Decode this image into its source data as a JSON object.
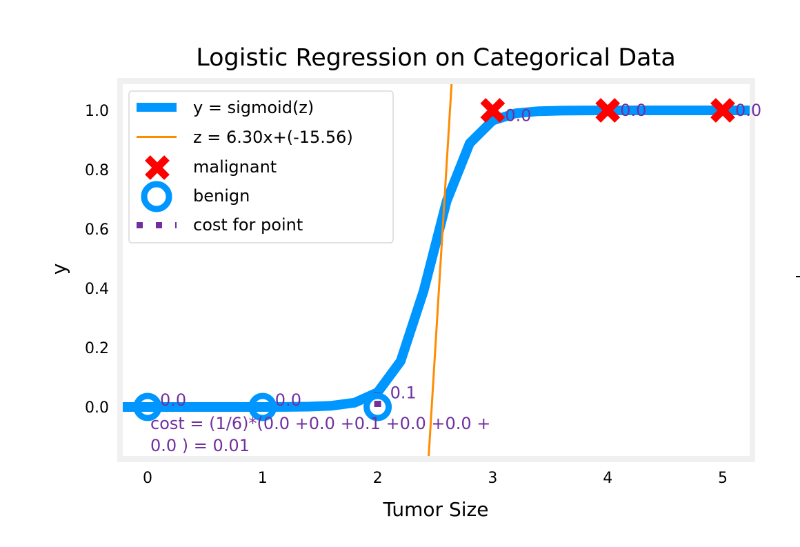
{
  "chart_data": {
    "type": "line",
    "title": "Logistic Regression on Categorical Data",
    "xlabel": "Tumor Size",
    "ylabel": "y",
    "xlim": [
      -0.26,
      5.28
    ],
    "ylim": [
      -0.175,
      1.1
    ],
    "grid": false,
    "legend_placement": "upper-left",
    "xticks": [
      "0",
      "1",
      "2",
      "3",
      "4",
      "5"
    ],
    "yticks": [
      "0.0",
      "0.2",
      "0.4",
      "0.6",
      "0.8",
      "1.0"
    ],
    "model": {
      "w": 6.3,
      "b": -15.56
    },
    "sigmoid_curve": {
      "name": "y = sigmoid(z)",
      "color": "#0096ff",
      "x": [
        -0.4,
        -0.2,
        0,
        0.2,
        0.4,
        0.6,
        0.8,
        1.0,
        1.2,
        1.4,
        1.6,
        1.8,
        2.0,
        2.2,
        2.4,
        2.6,
        2.8,
        3.0,
        3.2,
        3.4,
        3.6,
        3.8,
        4.0,
        4.2,
        4.4,
        4.6,
        4.8,
        5.0,
        5.2,
        5.4
      ],
      "y": [
        0,
        0,
        0,
        0,
        0,
        0,
        0,
        0.0001,
        0.0004,
        0.0012,
        0.0042,
        0.0145,
        0.0493,
        0.1545,
        0.3917,
        0.6942,
        0.8889,
        0.9658,
        0.9901,
        0.9972,
        0.9992,
        0.9998,
        1,
        1,
        1,
        1,
        1,
        1,
        1,
        1
      ]
    },
    "z_line": {
      "name": "z = 6.30x+(-15.56)",
      "color": "#ff8c00"
    },
    "malignant": {
      "name": "malignant",
      "color": "#ff0000",
      "x": [
        3,
        4,
        5
      ],
      "y": [
        1,
        1,
        1
      ],
      "cost_labels": [
        "0.0",
        "0.0",
        "0.0"
      ]
    },
    "benign": {
      "name": "benign",
      "color": "#0096ff",
      "x": [
        0,
        1,
        2
      ],
      "y": [
        0,
        0,
        0
      ],
      "cost_labels": [
        "0.0",
        "0.0",
        "0.1"
      ]
    },
    "cost_for_point": {
      "name": "cost for point",
      "color": "#7030a0"
    },
    "cost_text": [
      "cost = (1/6)*(0.0 +0.0 +0.1 +0.0 +0.0 +",
      "0.0 ) = 0.01"
    ]
  }
}
